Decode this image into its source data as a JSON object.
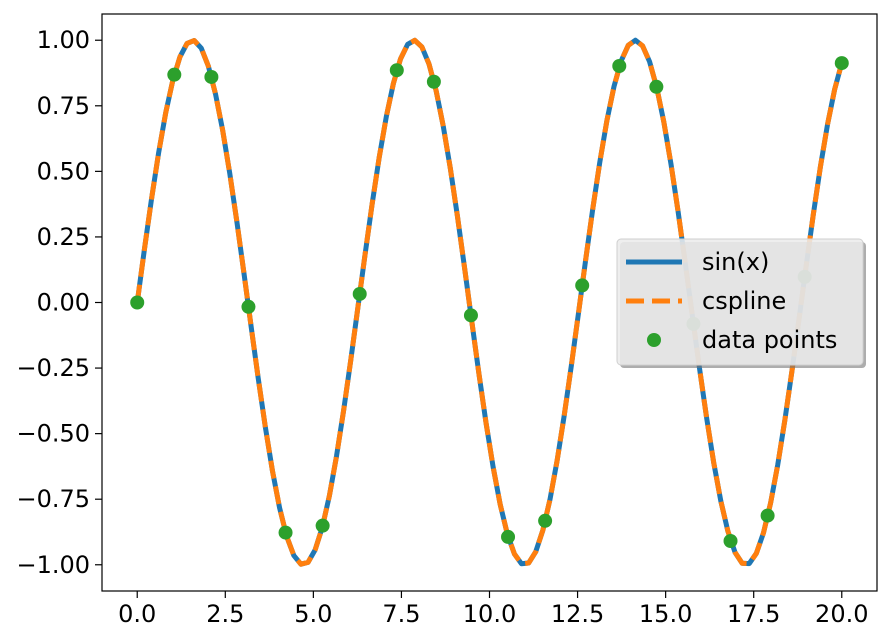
{
  "chart_data": {
    "type": "line",
    "xlim": [
      -1.0,
      21.0
    ],
    "ylim": [
      -1.1,
      1.1
    ],
    "grid": false,
    "legend_placement": "center-right",
    "x_ticks": [
      0.0,
      2.5,
      5.0,
      7.5,
      10.0,
      12.5,
      15.0,
      17.5,
      20.0
    ],
    "x_tick_labels": [
      "0.0",
      "2.5",
      "5.0",
      "7.5",
      "10.0",
      "12.5",
      "15.0",
      "17.5",
      "20.0"
    ],
    "y_ticks": [
      1.0,
      0.75,
      0.5,
      0.25,
      0.0,
      -0.25,
      -0.5,
      -0.75,
      -1.0
    ],
    "y_tick_labels": [
      "1.00",
      "0.75",
      "0.50",
      "0.25",
      "0.00",
      "−0.25",
      "−0.50",
      "−0.75",
      "−1.00"
    ],
    "series": [
      {
        "name": "sin(x)",
        "style": "solid",
        "color": "#1f77b4",
        "function": "sin",
        "x_range": [
          0,
          20
        ]
      },
      {
        "name": "cspline",
        "style": "dashed",
        "color": "#ff7f0e",
        "function": "sin",
        "x_range": [
          0,
          20
        ]
      },
      {
        "name": "data points",
        "style": "markers",
        "color": "#2ca02c",
        "x": [
          0.0,
          1.0526,
          2.1053,
          3.1579,
          4.2105,
          5.2632,
          6.3158,
          7.3684,
          8.4211,
          9.4737,
          10.5263,
          11.5789,
          12.6316,
          13.6842,
          14.7368,
          15.7895,
          16.8421,
          17.8947,
          18.9474,
          20.0
        ],
        "y": [
          0.0,
          0.8687,
          0.8599,
          -0.0163,
          -0.8773,
          -0.8509,
          0.0326,
          0.8857,
          0.8417,
          -0.0489,
          -0.8938,
          -0.8322,
          0.0652,
          0.9017,
          0.8224,
          -0.0815,
          -0.9094,
          -0.8124,
          0.0977,
          0.9129
        ]
      }
    ]
  }
}
